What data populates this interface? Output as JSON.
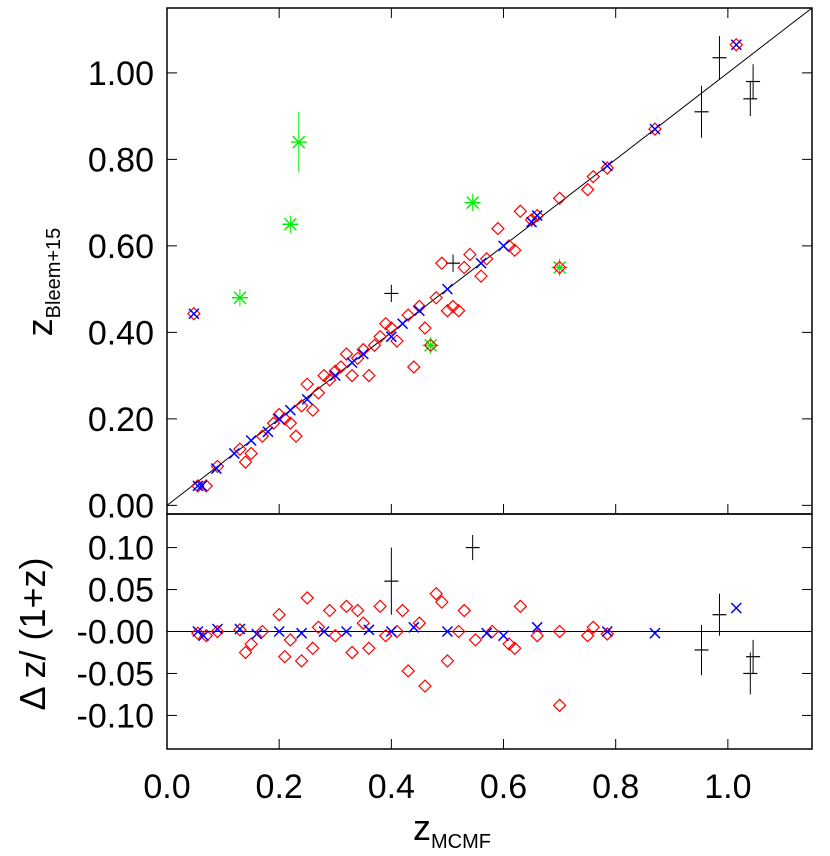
{
  "chart_data": [
    {
      "type": "scatter",
      "panel": "top",
      "xlabel": "z",
      "xlabel_sub": "MCMF",
      "ylabel": "z",
      "ylabel_sub": "Bleem+15",
      "xlim": [
        0.0,
        1.15
      ],
      "ylim": [
        -0.02,
        1.15
      ],
      "x_ticks": [
        0.0,
        0.2,
        0.4,
        0.6,
        0.8,
        1.0
      ],
      "x_tick_labels": [
        "0.0",
        "0.2",
        "0.4",
        "0.6",
        "0.8",
        "1.0"
      ],
      "y_ticks": [
        0.0,
        0.2,
        0.4,
        0.6,
        0.8,
        1.0
      ],
      "y_tick_labels": [
        "0.00",
        "0.20",
        "0.40",
        "0.60",
        "0.80",
        "1.00"
      ],
      "reference_line": {
        "slope": 1,
        "intercept": 0,
        "color": "#000000"
      },
      "colors": {
        "blue": "#0000ff",
        "red": "#ff0000",
        "green": "#00ee00",
        "black": "#000000"
      },
      "series": [
        {
          "marker": "blue-x",
          "color": "#0000ff",
          "points": [
            [
              0.048,
              0.443
            ],
            [
              0.055,
              0.045
            ],
            [
              0.062,
              0.045
            ],
            [
              0.088,
              0.085
            ],
            [
              0.12,
              0.12
            ],
            [
              0.15,
              0.15
            ],
            [
              0.18,
              0.17
            ],
            [
              0.2,
              0.2
            ],
            [
              0.22,
              0.22
            ],
            [
              0.25,
              0.245
            ],
            [
              0.3,
              0.3
            ],
            [
              0.33,
              0.33
            ],
            [
              0.35,
              0.35
            ],
            [
              0.4,
              0.39
            ],
            [
              0.42,
              0.42
            ],
            [
              0.45,
              0.45
            ],
            [
              0.5,
              0.5
            ],
            [
              0.56,
              0.56
            ],
            [
              0.6,
              0.6
            ],
            [
              0.65,
              0.655
            ],
            [
              0.66,
              0.67
            ],
            [
              0.785,
              0.785
            ],
            [
              0.87,
              0.87
            ],
            [
              1.015,
              1.065
            ]
          ]
        },
        {
          "marker": "red-diamond",
          "color": "#ff0000",
          "points": [
            [
              0.048,
              0.443
            ],
            [
              0.055,
              0.045
            ],
            [
              0.07,
              0.045
            ],
            [
              0.09,
              0.09
            ],
            [
              0.13,
              0.13
            ],
            [
              0.14,
              0.1
            ],
            [
              0.15,
              0.12
            ],
            [
              0.17,
              0.16
            ],
            [
              0.19,
              0.19
            ],
            [
              0.2,
              0.21
            ],
            [
              0.21,
              0.2
            ],
            [
              0.22,
              0.19
            ],
            [
              0.23,
              0.16
            ],
            [
              0.24,
              0.23
            ],
            [
              0.25,
              0.28
            ],
            [
              0.26,
              0.22
            ],
            [
              0.27,
              0.26
            ],
            [
              0.28,
              0.3
            ],
            [
              0.29,
              0.29
            ],
            [
              0.3,
              0.31
            ],
            [
              0.31,
              0.32
            ],
            [
              0.32,
              0.35
            ],
            [
              0.33,
              0.3
            ],
            [
              0.34,
              0.34
            ],
            [
              0.35,
              0.36
            ],
            [
              0.36,
              0.3
            ],
            [
              0.37,
              0.37
            ],
            [
              0.38,
              0.39
            ],
            [
              0.39,
              0.42
            ],
            [
              0.4,
              0.41
            ],
            [
              0.41,
              0.38
            ],
            [
              0.43,
              0.44
            ],
            [
              0.44,
              0.32
            ],
            [
              0.45,
              0.46
            ],
            [
              0.46,
              0.41
            ],
            [
              0.47,
              0.37
            ],
            [
              0.48,
              0.48
            ],
            [
              0.49,
              0.56
            ],
            [
              0.5,
              0.45
            ],
            [
              0.51,
              0.46
            ],
            [
              0.52,
              0.45
            ],
            [
              0.53,
              0.55
            ],
            [
              0.54,
              0.58
            ],
            [
              0.56,
              0.53
            ],
            [
              0.57,
              0.57
            ],
            [
              0.59,
              0.64
            ],
            [
              0.61,
              0.6
            ],
            [
              0.62,
              0.59
            ],
            [
              0.63,
              0.68
            ],
            [
              0.65,
              0.66
            ],
            [
              0.66,
              0.67
            ],
            [
              0.7,
              0.55
            ],
            [
              0.7,
              0.71
            ],
            [
              0.75,
              0.73
            ],
            [
              0.76,
              0.76
            ],
            [
              0.785,
              0.78
            ],
            [
              0.87,
              0.87
            ],
            [
              1.015,
              1.065
            ]
          ]
        },
        {
          "marker": "green-star",
          "color": "#00ee00",
          "points": [
            [
              0.13,
              0.48
            ],
            [
              0.22,
              0.65
            ],
            [
              0.235,
              0.84
            ],
            [
              0.47,
              0.37
            ],
            [
              0.545,
              0.7
            ],
            [
              0.7,
              0.55
            ]
          ],
          "yerr": [
            0.02,
            0.02,
            0.07,
            0.02,
            0.02,
            0.02
          ]
        },
        {
          "marker": "black-plus",
          "color": "#000000",
          "points": [
            [
              0.4,
              0.49
            ],
            [
              0.51,
              0.56
            ],
            [
              0.953,
              0.91
            ],
            [
              0.985,
              1.035
            ],
            [
              1.04,
              0.94
            ],
            [
              1.045,
              0.98
            ]
          ],
          "yerr": [
            0.02,
            0.02,
            0.06,
            0.05,
            0.04,
            0.04
          ]
        }
      ]
    },
    {
      "type": "scatter",
      "panel": "bottom",
      "ylabel": "Δ z/ (1+z)",
      "xlim": [
        0.0,
        1.15
      ],
      "ylim": [
        -0.14,
        0.14
      ],
      "y_ticks": [
        0.1,
        0.05,
        0.0,
        -0.05,
        -0.1
      ],
      "y_tick_labels": [
        "0.10",
        "0.05",
        "-0.00",
        "-0.05",
        "-0.10"
      ],
      "reference_line": {
        "y": 0,
        "color": "#000000"
      },
      "series": [
        {
          "marker": "blue-x",
          "color": "#0000ff",
          "points": [
            [
              0.055,
              0.0
            ],
            [
              0.065,
              -0.005
            ],
            [
              0.09,
              0.003
            ],
            [
              0.13,
              0.003
            ],
            [
              0.16,
              -0.003
            ],
            [
              0.2,
              0.0
            ],
            [
              0.24,
              -0.002
            ],
            [
              0.28,
              0.0
            ],
            [
              0.32,
              0.0
            ],
            [
              0.36,
              0.002
            ],
            [
              0.4,
              0.0
            ],
            [
              0.44,
              0.005
            ],
            [
              0.5,
              0.0
            ],
            [
              0.57,
              -0.002
            ],
            [
              0.6,
              -0.005
            ],
            [
              0.66,
              0.005
            ],
            [
              0.785,
              0.0
            ],
            [
              0.87,
              -0.002
            ],
            [
              1.015,
              0.028
            ]
          ]
        },
        {
          "marker": "red-diamond",
          "color": "#ff0000",
          "points": [
            [
              0.055,
              -0.002
            ],
            [
              0.07,
              -0.005
            ],
            [
              0.09,
              0.0
            ],
            [
              0.13,
              0.002
            ],
            [
              0.14,
              -0.025
            ],
            [
              0.15,
              -0.015
            ],
            [
              0.17,
              0.0
            ],
            [
              0.2,
              0.02
            ],
            [
              0.21,
              -0.03
            ],
            [
              0.22,
              -0.01
            ],
            [
              0.24,
              -0.035
            ],
            [
              0.25,
              0.04
            ],
            [
              0.26,
              -0.02
            ],
            [
              0.27,
              0.005
            ],
            [
              0.29,
              0.025
            ],
            [
              0.3,
              -0.005
            ],
            [
              0.32,
              0.03
            ],
            [
              0.33,
              -0.025
            ],
            [
              0.34,
              0.025
            ],
            [
              0.35,
              0.01
            ],
            [
              0.36,
              -0.02
            ],
            [
              0.38,
              0.03
            ],
            [
              0.39,
              -0.005
            ],
            [
              0.41,
              0.0
            ],
            [
              0.42,
              0.025
            ],
            [
              0.43,
              -0.047
            ],
            [
              0.45,
              0.01
            ],
            [
              0.46,
              -0.065
            ],
            [
              0.48,
              0.045
            ],
            [
              0.49,
              0.035
            ],
            [
              0.5,
              -0.035
            ],
            [
              0.52,
              0.0
            ],
            [
              0.53,
              0.025
            ],
            [
              0.55,
              -0.01
            ],
            [
              0.58,
              0.0
            ],
            [
              0.61,
              -0.015
            ],
            [
              0.62,
              -0.02
            ],
            [
              0.63,
              0.03
            ],
            [
              0.66,
              -0.005
            ],
            [
              0.7,
              0.0
            ],
            [
              0.7,
              -0.088
            ],
            [
              0.75,
              -0.005
            ],
            [
              0.76,
              0.005
            ],
            [
              0.785,
              -0.003
            ]
          ]
        },
        {
          "marker": "black-plus",
          "color": "#000000",
          "points": [
            [
              0.4,
              0.06
            ],
            [
              0.545,
              0.1
            ],
            [
              0.953,
              -0.022
            ],
            [
              0.985,
              0.02
            ],
            [
              1.04,
              -0.05
            ],
            [
              1.045,
              -0.03
            ]
          ],
          "yerr": [
            0.04,
            0.015,
            0.03,
            0.025,
            0.025,
            0.02
          ]
        }
      ]
    }
  ]
}
